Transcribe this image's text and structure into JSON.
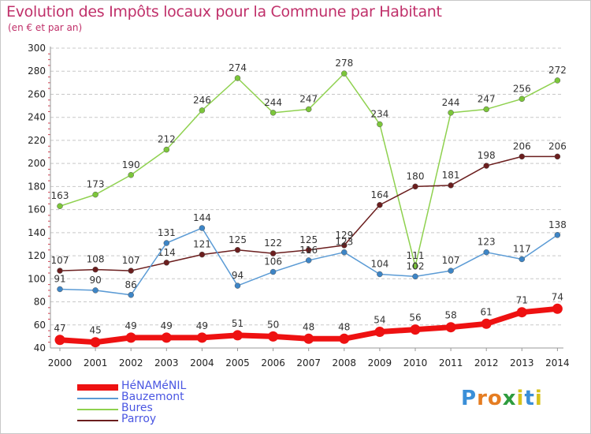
{
  "header": {
    "title": "Evolution des Impôts locaux pour la Commune par Habitant",
    "subtitle": "(en € et par an)"
  },
  "logo": {
    "letters": [
      "P",
      "r",
      "o",
      "x",
      "i",
      "t",
      "i"
    ],
    "colors": [
      "#3a8fd8",
      "#e57d22",
      "#e57d22",
      "#2e9c3e",
      "#d6c21c",
      "#3a8fd8",
      "#d6c21c"
    ]
  },
  "colors": {
    "title": "#c0306a",
    "axis": "#999999",
    "grid": "#c8c8c8"
  },
  "chart_data": {
    "type": "line",
    "title": "Evolution des Impôts locaux pour la Commune par Habitant",
    "subtitle": "(en € et par an)",
    "x": [
      "2000",
      "2001",
      "2002",
      "2003",
      "2004",
      "2005",
      "2006",
      "2007",
      "2008",
      "2009",
      "2010",
      "2011",
      "2012",
      "2013",
      "2014"
    ],
    "ylim": [
      40,
      300
    ],
    "yticks": [
      40,
      60,
      80,
      100,
      120,
      140,
      160,
      180,
      200,
      220,
      240,
      260,
      280,
      300
    ],
    "grid": "horizontal dashed",
    "legend": "bottom-left",
    "series": [
      {
        "name": "Bures",
        "color": "#8fd14f",
        "marker": "#7cc63a",
        "width": 1.5,
        "values": [
          163,
          173,
          190,
          212,
          246,
          274,
          244,
          247,
          278,
          234,
          111,
          244,
          247,
          256,
          272
        ]
      },
      {
        "name": "Parroy",
        "color": "#6b1e1e",
        "marker": "#6b1e1e",
        "width": 1.5,
        "values": [
          107,
          108,
          107,
          114,
          121,
          125,
          122,
          125,
          129,
          164,
          180,
          181,
          198,
          206,
          206
        ]
      },
      {
        "name": "Bauzemont",
        "color": "#5b9bd5",
        "marker": "#3d85c6",
        "width": 1.5,
        "values": [
          91,
          90,
          86,
          131,
          144,
          94,
          106,
          116,
          123,
          104,
          102,
          107,
          123,
          117,
          138
        ]
      },
      {
        "name": "HéNAMéNIL",
        "color": "#ee1111",
        "marker": "#ee1111",
        "width": 7,
        "values": [
          47,
          45,
          49,
          49,
          49,
          51,
          50,
          48,
          48,
          54,
          56,
          58,
          61,
          71,
          74
        ]
      }
    ],
    "legend_order": [
      "HéNAMéNIL",
      "Bauzemont",
      "Bures",
      "Parroy"
    ]
  }
}
